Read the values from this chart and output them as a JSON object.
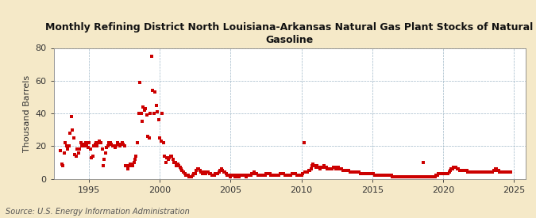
{
  "title": "Monthly Refining District North Louisiana-Arkansas Natural Gas Plant Stocks of Natural\nGasoline",
  "ylabel": "Thousand Barrels",
  "source": "Source: U.S. Energy Information Administration",
  "fig_background": "#f5e9c8",
  "plot_background": "#ffffff",
  "marker_color": "#cc0000",
  "xlim": [
    1992.5,
    2025.8
  ],
  "ylim": [
    0,
    80
  ],
  "yticks": [
    0,
    20,
    40,
    60,
    80
  ],
  "xticks": [
    1995,
    2000,
    2005,
    2010,
    2015,
    2020,
    2025
  ],
  "data": [
    [
      1993.0,
      17
    ],
    [
      1993.08,
      9
    ],
    [
      1993.17,
      8
    ],
    [
      1993.25,
      16
    ],
    [
      1993.33,
      22
    ],
    [
      1993.42,
      20
    ],
    [
      1993.5,
      18
    ],
    [
      1993.58,
      20
    ],
    [
      1993.67,
      28
    ],
    [
      1993.75,
      38
    ],
    [
      1993.83,
      30
    ],
    [
      1993.92,
      25
    ],
    [
      1994.0,
      15
    ],
    [
      1994.08,
      14
    ],
    [
      1994.17,
      18
    ],
    [
      1994.25,
      16
    ],
    [
      1994.33,
      18
    ],
    [
      1994.42,
      22
    ],
    [
      1994.5,
      20
    ],
    [
      1994.58,
      20
    ],
    [
      1994.67,
      21
    ],
    [
      1994.75,
      22
    ],
    [
      1994.83,
      20
    ],
    [
      1994.92,
      19
    ],
    [
      1995.0,
      22
    ],
    [
      1995.08,
      18
    ],
    [
      1995.17,
      13
    ],
    [
      1995.25,
      14
    ],
    [
      1995.33,
      20
    ],
    [
      1995.42,
      21
    ],
    [
      1995.5,
      22
    ],
    [
      1995.58,
      20
    ],
    [
      1995.67,
      22
    ],
    [
      1995.75,
      23
    ],
    [
      1995.83,
      22
    ],
    [
      1995.92,
      18
    ],
    [
      1996.0,
      8
    ],
    [
      1996.08,
      12
    ],
    [
      1996.17,
      16
    ],
    [
      1996.25,
      19
    ],
    [
      1996.33,
      20
    ],
    [
      1996.42,
      22
    ],
    [
      1996.5,
      22
    ],
    [
      1996.58,
      21
    ],
    [
      1996.67,
      20
    ],
    [
      1996.75,
      20
    ],
    [
      1996.83,
      19
    ],
    [
      1996.92,
      20
    ],
    [
      1997.0,
      22
    ],
    [
      1997.08,
      21
    ],
    [
      1997.17,
      20
    ],
    [
      1997.25,
      21
    ],
    [
      1997.33,
      22
    ],
    [
      1997.42,
      21
    ],
    [
      1997.5,
      20
    ],
    [
      1997.58,
      8
    ],
    [
      1997.67,
      8
    ],
    [
      1997.75,
      6
    ],
    [
      1997.83,
      8
    ],
    [
      1997.92,
      9
    ],
    [
      1998.0,
      9
    ],
    [
      1998.08,
      8
    ],
    [
      1998.17,
      10
    ],
    [
      1998.25,
      12
    ],
    [
      1998.33,
      14
    ],
    [
      1998.42,
      22
    ],
    [
      1998.5,
      40
    ],
    [
      1998.58,
      59
    ],
    [
      1998.67,
      40
    ],
    [
      1998.75,
      35
    ],
    [
      1998.83,
      44
    ],
    [
      1998.92,
      42
    ],
    [
      1999.0,
      43
    ],
    [
      1999.08,
      39
    ],
    [
      1999.17,
      26
    ],
    [
      1999.25,
      25
    ],
    [
      1999.33,
      40
    ],
    [
      1999.42,
      75
    ],
    [
      1999.5,
      54
    ],
    [
      1999.58,
      40
    ],
    [
      1999.67,
      53
    ],
    [
      1999.75,
      45
    ],
    [
      1999.83,
      41
    ],
    [
      1999.92,
      36
    ],
    [
      2000.0,
      25
    ],
    [
      2000.08,
      23
    ],
    [
      2000.17,
      40
    ],
    [
      2000.25,
      22
    ],
    [
      2000.33,
      14
    ],
    [
      2000.42,
      10
    ],
    [
      2000.5,
      13
    ],
    [
      2000.58,
      12
    ],
    [
      2000.67,
      13
    ],
    [
      2000.75,
      14
    ],
    [
      2000.83,
      14
    ],
    [
      2000.92,
      12
    ],
    [
      2001.0,
      10
    ],
    [
      2001.08,
      10
    ],
    [
      2001.17,
      8
    ],
    [
      2001.25,
      9
    ],
    [
      2001.33,
      8
    ],
    [
      2001.42,
      7
    ],
    [
      2001.5,
      6
    ],
    [
      2001.58,
      5
    ],
    [
      2001.67,
      4
    ],
    [
      2001.75,
      3
    ],
    [
      2001.83,
      2
    ],
    [
      2001.92,
      2
    ],
    [
      2002.0,
      2
    ],
    [
      2002.08,
      1
    ],
    [
      2002.17,
      1
    ],
    [
      2002.25,
      1
    ],
    [
      2002.33,
      2
    ],
    [
      2002.42,
      3
    ],
    [
      2002.5,
      3
    ],
    [
      2002.58,
      5
    ],
    [
      2002.67,
      6
    ],
    [
      2002.75,
      6
    ],
    [
      2002.83,
      5
    ],
    [
      2002.92,
      4
    ],
    [
      2003.0,
      3
    ],
    [
      2003.08,
      4
    ],
    [
      2003.17,
      4
    ],
    [
      2003.25,
      3
    ],
    [
      2003.33,
      4
    ],
    [
      2003.42,
      4
    ],
    [
      2003.5,
      3
    ],
    [
      2003.58,
      3
    ],
    [
      2003.67,
      2
    ],
    [
      2003.75,
      2
    ],
    [
      2003.83,
      2
    ],
    [
      2003.92,
      3
    ],
    [
      2004.0,
      3
    ],
    [
      2004.08,
      3
    ],
    [
      2004.17,
      4
    ],
    [
      2004.25,
      5
    ],
    [
      2004.33,
      6
    ],
    [
      2004.42,
      5
    ],
    [
      2004.5,
      4
    ],
    [
      2004.58,
      4
    ],
    [
      2004.67,
      3
    ],
    [
      2004.75,
      2
    ],
    [
      2004.83,
      2
    ],
    [
      2004.92,
      2
    ],
    [
      2005.0,
      1
    ],
    [
      2005.08,
      2
    ],
    [
      2005.17,
      2
    ],
    [
      2005.25,
      2
    ],
    [
      2005.33,
      1
    ],
    [
      2005.42,
      1
    ],
    [
      2005.5,
      2
    ],
    [
      2005.58,
      1
    ],
    [
      2005.67,
      2
    ],
    [
      2005.75,
      2
    ],
    [
      2005.83,
      2
    ],
    [
      2005.92,
      2
    ],
    [
      2006.0,
      2
    ],
    [
      2006.08,
      1
    ],
    [
      2006.17,
      2
    ],
    [
      2006.25,
      2
    ],
    [
      2006.33,
      2
    ],
    [
      2006.42,
      2
    ],
    [
      2006.5,
      3
    ],
    [
      2006.58,
      3
    ],
    [
      2006.67,
      4
    ],
    [
      2006.75,
      3
    ],
    [
      2006.83,
      3
    ],
    [
      2006.92,
      2
    ],
    [
      2007.0,
      2
    ],
    [
      2007.08,
      2
    ],
    [
      2007.17,
      2
    ],
    [
      2007.25,
      2
    ],
    [
      2007.33,
      2
    ],
    [
      2007.42,
      2
    ],
    [
      2007.5,
      3
    ],
    [
      2007.58,
      3
    ],
    [
      2007.67,
      3
    ],
    [
      2007.75,
      3
    ],
    [
      2007.83,
      2
    ],
    [
      2007.92,
      2
    ],
    [
      2008.0,
      2
    ],
    [
      2008.08,
      2
    ],
    [
      2008.17,
      2
    ],
    [
      2008.25,
      2
    ],
    [
      2008.33,
      2
    ],
    [
      2008.42,
      2
    ],
    [
      2008.5,
      3
    ],
    [
      2008.58,
      3
    ],
    [
      2008.67,
      3
    ],
    [
      2008.75,
      3
    ],
    [
      2008.83,
      2
    ],
    [
      2008.92,
      2
    ],
    [
      2009.0,
      2
    ],
    [
      2009.08,
      2
    ],
    [
      2009.17,
      2
    ],
    [
      2009.25,
      2
    ],
    [
      2009.33,
      3
    ],
    [
      2009.42,
      3
    ],
    [
      2009.5,
      3
    ],
    [
      2009.58,
      3
    ],
    [
      2009.67,
      2
    ],
    [
      2009.75,
      2
    ],
    [
      2009.83,
      2
    ],
    [
      2009.92,
      2
    ],
    [
      2010.0,
      2
    ],
    [
      2010.08,
      3
    ],
    [
      2010.17,
      22
    ],
    [
      2010.25,
      4
    ],
    [
      2010.33,
      4
    ],
    [
      2010.42,
      4
    ],
    [
      2010.5,
      5
    ],
    [
      2010.58,
      5
    ],
    [
      2010.67,
      6
    ],
    [
      2010.75,
      8
    ],
    [
      2010.83,
      9
    ],
    [
      2010.92,
      8
    ],
    [
      2011.0,
      7
    ],
    [
      2011.08,
      8
    ],
    [
      2011.17,
      7
    ],
    [
      2011.25,
      7
    ],
    [
      2011.33,
      6
    ],
    [
      2011.42,
      7
    ],
    [
      2011.5,
      7
    ],
    [
      2011.58,
      8
    ],
    [
      2011.67,
      7
    ],
    [
      2011.75,
      7
    ],
    [
      2011.83,
      6
    ],
    [
      2011.92,
      6
    ],
    [
      2012.0,
      6
    ],
    [
      2012.08,
      6
    ],
    [
      2012.17,
      6
    ],
    [
      2012.25,
      7
    ],
    [
      2012.33,
      7
    ],
    [
      2012.42,
      6
    ],
    [
      2012.5,
      7
    ],
    [
      2012.58,
      7
    ],
    [
      2012.67,
      6
    ],
    [
      2012.75,
      6
    ],
    [
      2012.83,
      6
    ],
    [
      2012.92,
      5
    ],
    [
      2013.0,
      5
    ],
    [
      2013.08,
      5
    ],
    [
      2013.17,
      5
    ],
    [
      2013.25,
      5
    ],
    [
      2013.33,
      5
    ],
    [
      2013.42,
      4
    ],
    [
      2013.5,
      4
    ],
    [
      2013.58,
      4
    ],
    [
      2013.67,
      4
    ],
    [
      2013.75,
      4
    ],
    [
      2013.83,
      4
    ],
    [
      2013.92,
      4
    ],
    [
      2014.0,
      4
    ],
    [
      2014.08,
      4
    ],
    [
      2014.17,
      3
    ],
    [
      2014.25,
      3
    ],
    [
      2014.33,
      3
    ],
    [
      2014.42,
      3
    ],
    [
      2014.5,
      3
    ],
    [
      2014.58,
      3
    ],
    [
      2014.67,
      3
    ],
    [
      2014.75,
      3
    ],
    [
      2014.83,
      3
    ],
    [
      2014.92,
      3
    ],
    [
      2015.0,
      3
    ],
    [
      2015.08,
      3
    ],
    [
      2015.17,
      2
    ],
    [
      2015.25,
      2
    ],
    [
      2015.33,
      2
    ],
    [
      2015.42,
      2
    ],
    [
      2015.5,
      2
    ],
    [
      2015.58,
      2
    ],
    [
      2015.67,
      2
    ],
    [
      2015.75,
      2
    ],
    [
      2015.83,
      2
    ],
    [
      2015.92,
      2
    ],
    [
      2016.0,
      2
    ],
    [
      2016.08,
      2
    ],
    [
      2016.17,
      2
    ],
    [
      2016.25,
      2
    ],
    [
      2016.33,
      2
    ],
    [
      2016.42,
      1
    ],
    [
      2016.5,
      1
    ],
    [
      2016.58,
      1
    ],
    [
      2016.67,
      1
    ],
    [
      2016.75,
      1
    ],
    [
      2016.83,
      1
    ],
    [
      2016.92,
      1
    ],
    [
      2017.0,
      1
    ],
    [
      2017.08,
      1
    ],
    [
      2017.17,
      1
    ],
    [
      2017.25,
      1
    ],
    [
      2017.33,
      1
    ],
    [
      2017.42,
      1
    ],
    [
      2017.5,
      1
    ],
    [
      2017.58,
      1
    ],
    [
      2017.67,
      1
    ],
    [
      2017.75,
      1
    ],
    [
      2017.83,
      1
    ],
    [
      2017.92,
      1
    ],
    [
      2018.0,
      1
    ],
    [
      2018.08,
      1
    ],
    [
      2018.17,
      1
    ],
    [
      2018.25,
      1
    ],
    [
      2018.33,
      1
    ],
    [
      2018.42,
      1
    ],
    [
      2018.5,
      1
    ],
    [
      2018.58,
      10
    ],
    [
      2018.67,
      1
    ],
    [
      2018.75,
      1
    ],
    [
      2018.83,
      1
    ],
    [
      2018.92,
      1
    ],
    [
      2019.0,
      1
    ],
    [
      2019.08,
      1
    ],
    [
      2019.17,
      1
    ],
    [
      2019.25,
      1
    ],
    [
      2019.33,
      1
    ],
    [
      2019.42,
      1
    ],
    [
      2019.5,
      2
    ],
    [
      2019.58,
      2
    ],
    [
      2019.67,
      3
    ],
    [
      2019.75,
      3
    ],
    [
      2019.83,
      3
    ],
    [
      2019.92,
      3
    ],
    [
      2020.0,
      3
    ],
    [
      2020.08,
      3
    ],
    [
      2020.17,
      3
    ],
    [
      2020.25,
      3
    ],
    [
      2020.33,
      3
    ],
    [
      2020.42,
      4
    ],
    [
      2020.5,
      5
    ],
    [
      2020.58,
      6
    ],
    [
      2020.67,
      6
    ],
    [
      2020.75,
      7
    ],
    [
      2020.83,
      7
    ],
    [
      2020.92,
      7
    ],
    [
      2021.0,
      6
    ],
    [
      2021.08,
      6
    ],
    [
      2021.17,
      5
    ],
    [
      2021.25,
      5
    ],
    [
      2021.33,
      5
    ],
    [
      2021.42,
      5
    ],
    [
      2021.5,
      5
    ],
    [
      2021.58,
      5
    ],
    [
      2021.67,
      5
    ],
    [
      2021.75,
      4
    ],
    [
      2021.83,
      4
    ],
    [
      2021.92,
      4
    ],
    [
      2022.0,
      4
    ],
    [
      2022.08,
      4
    ],
    [
      2022.17,
      4
    ],
    [
      2022.25,
      4
    ],
    [
      2022.33,
      4
    ],
    [
      2022.42,
      4
    ],
    [
      2022.5,
      4
    ],
    [
      2022.58,
      4
    ],
    [
      2022.67,
      4
    ],
    [
      2022.75,
      4
    ],
    [
      2022.83,
      4
    ],
    [
      2022.92,
      4
    ],
    [
      2023.0,
      4
    ],
    [
      2023.08,
      4
    ],
    [
      2023.17,
      4
    ],
    [
      2023.25,
      4
    ],
    [
      2023.33,
      4
    ],
    [
      2023.42,
      4
    ],
    [
      2023.5,
      4
    ],
    [
      2023.58,
      5
    ],
    [
      2023.67,
      6
    ],
    [
      2023.75,
      6
    ],
    [
      2023.83,
      5
    ],
    [
      2023.92,
      5
    ],
    [
      2024.0,
      4
    ],
    [
      2024.08,
      4
    ],
    [
      2024.17,
      4
    ],
    [
      2024.25,
      4
    ],
    [
      2024.33,
      4
    ],
    [
      2024.42,
      4
    ],
    [
      2024.5,
      4
    ],
    [
      2024.58,
      4
    ],
    [
      2024.67,
      4
    ],
    [
      2024.75,
      4
    ]
  ]
}
